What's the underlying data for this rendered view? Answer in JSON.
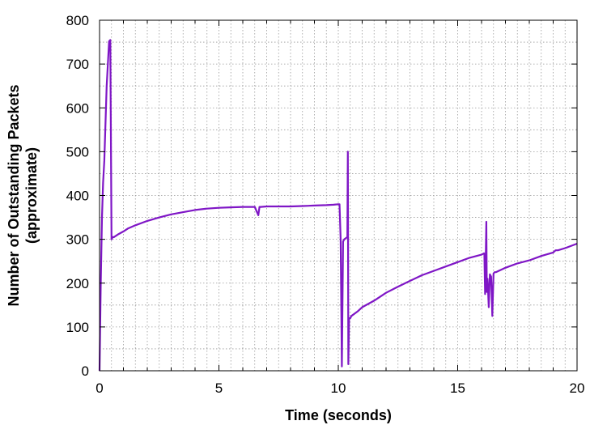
{
  "chart_data": {
    "type": "line",
    "title": "",
    "xlabel": "Time (seconds)",
    "ylabel_lines": [
      "Number of Outstanding Packets",
      "(approximate)"
    ],
    "xlim": [
      0,
      20
    ],
    "ylim": [
      0,
      800
    ],
    "x_ticks": [
      0,
      5,
      10,
      15,
      20
    ],
    "y_ticks": [
      0,
      100,
      200,
      300,
      400,
      500,
      600,
      700,
      800
    ],
    "grid": true,
    "legend": "none",
    "colors": {
      "series": "#7f16c6",
      "grid": "#9a9a9a",
      "axis": "#000000"
    },
    "series": [
      {
        "x": [
          0.0,
          0.05,
          0.1,
          0.15,
          0.2,
          0.3,
          0.4,
          0.45,
          0.5,
          0.55,
          0.6,
          0.8,
          1.0,
          1.2,
          1.5,
          2.0,
          2.5,
          3.0,
          3.5,
          4.0,
          4.5,
          5.0,
          5.5,
          6.0,
          6.5,
          6.65,
          6.7,
          6.75,
          7.0,
          7.5,
          8.0,
          8.5,
          9.0,
          9.5,
          9.8,
          10.0,
          10.05,
          10.1,
          10.15,
          10.2,
          10.25,
          10.3,
          10.38,
          10.4,
          10.42,
          10.45,
          10.5,
          10.55,
          10.8,
          11.0,
          11.5,
          12.0,
          12.5,
          13.0,
          13.5,
          14.0,
          14.5,
          15.0,
          15.5,
          16.0,
          16.1,
          16.12,
          16.15,
          16.2,
          16.22,
          16.25,
          16.3,
          16.35,
          16.4,
          16.45,
          16.5,
          16.55,
          16.6,
          17.0,
          17.5,
          18.0,
          18.5,
          19.0,
          19.1,
          19.2,
          19.5,
          19.9,
          20.0
        ],
        "y": [
          0,
          200,
          350,
          430,
          480,
          650,
          752,
          755,
          300,
          305,
          305,
          312,
          318,
          325,
          332,
          342,
          350,
          357,
          362,
          367,
          370,
          372,
          373,
          374,
          374,
          355,
          374,
          374,
          375,
          375,
          375,
          376,
          377,
          378,
          379,
          380,
          380,
          300,
          10,
          295,
          300,
          302,
          305,
          500,
          15,
          120,
          120,
          125,
          135,
          145,
          160,
          178,
          192,
          205,
          218,
          228,
          238,
          248,
          258,
          265,
          268,
          265,
          175,
          340,
          180,
          210,
          145,
          220,
          215,
          125,
          222,
          225,
          225,
          235,
          245,
          252,
          262,
          270,
          275,
          275,
          280,
          288,
          290
        ]
      }
    ]
  }
}
